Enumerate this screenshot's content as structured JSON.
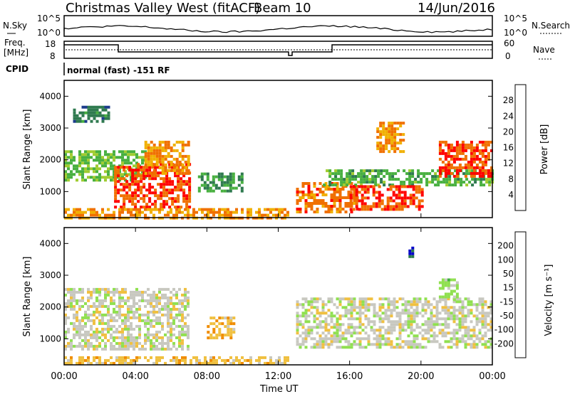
{
  "header": {
    "station": "Christmas Valley West (fitACF)",
    "beam": "Beam 10",
    "date": "14/Jun/2016"
  },
  "noise_panel": {
    "left_label": "N.Sky",
    "right_label": "N.Search",
    "left_ticks": [
      "10^5",
      "10^0"
    ],
    "right_ticks": [
      "10^5",
      "10^0"
    ]
  },
  "freq_panel": {
    "left_label_1": "Freq.",
    "left_label_2": "[MHz]",
    "right_label": "Nave",
    "left_ticks": [
      "18",
      "8"
    ],
    "right_ticks": [
      "60",
      "0"
    ]
  },
  "cpid_panel": {
    "label": "CPID",
    "text": "normal (fast) -151 RF"
  },
  "x_axis": {
    "label": "Time UT",
    "ticks": [
      "00:00",
      "04:00",
      "08:00",
      "12:00",
      "16:00",
      "20:00",
      "00:00"
    ]
  },
  "chart_data": [
    {
      "type": "heatmap",
      "panel": "power",
      "ylabel": "Slant Range [km]",
      "yticks": [
        "1000",
        "2000",
        "3000",
        "4000"
      ],
      "ylim": [
        180,
        4500
      ],
      "xlim": [
        0,
        24
      ],
      "colorbar": {
        "label": "Power [dB]",
        "ticks": [
          "4",
          "8",
          "12",
          "16",
          "20",
          "24",
          "28"
        ],
        "range": [
          0,
          32
        ],
        "colors": [
          "#0000dc",
          "#1c3c8c",
          "#2f7a4f",
          "#48b040",
          "#a0cc30",
          "#f0b000",
          "#f07000",
          "#ff0000"
        ]
      },
      "regions": [
        {
          "t": [
            0.0,
            4.5
          ],
          "r": [
            1400,
            2300
          ],
          "v": 16
        },
        {
          "t": [
            2.8,
            7.0
          ],
          "r": [
            500,
            1900
          ],
          "v": 28
        },
        {
          "t": [
            4.5,
            7.0
          ],
          "r": [
            1600,
            2600
          ],
          "v": 24
        },
        {
          "t": [
            7.5,
            10.0
          ],
          "r": [
            1050,
            1600
          ],
          "v": 12
        },
        {
          "t": [
            0.0,
            12.5
          ],
          "r": [
            200,
            480
          ],
          "v": 24
        },
        {
          "t": [
            13.0,
            16.5
          ],
          "r": [
            400,
            1300
          ],
          "v": 26
        },
        {
          "t": [
            14.5,
            24.0
          ],
          "r": [
            1200,
            1700
          ],
          "v": 14
        },
        {
          "t": [
            16.0,
            20.0
          ],
          "r": [
            450,
            1200
          ],
          "v": 28
        },
        {
          "t": [
            17.5,
            19.0
          ],
          "r": [
            2300,
            3200
          ],
          "v": 24
        },
        {
          "t": [
            21.0,
            24.0
          ],
          "r": [
            1500,
            2600
          ],
          "v": 28
        },
        {
          "t": [
            0.5,
            2.5
          ],
          "r": [
            3200,
            3700
          ],
          "v": 10
        }
      ]
    },
    {
      "type": "heatmap",
      "panel": "velocity",
      "ylabel": "Slant Range [km]",
      "yticks": [
        "1000",
        "2000",
        "3000",
        "4000"
      ],
      "ylim": [
        180,
        4500
      ],
      "xlim": [
        0,
        24
      ],
      "colorbar": {
        "label": "Velocity [m s⁻¹]",
        "ticks": [
          "200",
          "100",
          "50",
          "15",
          "-15",
          "-50",
          "-100",
          "-200"
        ],
        "range": [
          -250,
          250
        ],
        "colors": [
          "#ff0000",
          "#f05000",
          "#f08c00",
          "#f0c040",
          "#c8c8c0",
          "#90e050",
          "#40b040",
          "#2a7a4a",
          "#0000c8"
        ]
      },
      "regions": [
        {
          "t": [
            0.0,
            7.0
          ],
          "r": [
            700,
            2600
          ],
          "v": 0
        },
        {
          "t": [
            8.0,
            9.5
          ],
          "r": [
            1000,
            1700
          ],
          "v": -60
        },
        {
          "t": [
            0.0,
            12.5
          ],
          "r": [
            200,
            450
          ],
          "v": -50
        },
        {
          "t": [
            13.0,
            24.0
          ],
          "r": [
            700,
            2300
          ],
          "v": 0
        },
        {
          "t": [
            21.0,
            22.0
          ],
          "r": [
            2200,
            2900
          ],
          "v": 40
        },
        {
          "t": [
            19.3,
            19.5
          ],
          "r": [
            3600,
            3900
          ],
          "v": 220
        }
      ]
    }
  ]
}
